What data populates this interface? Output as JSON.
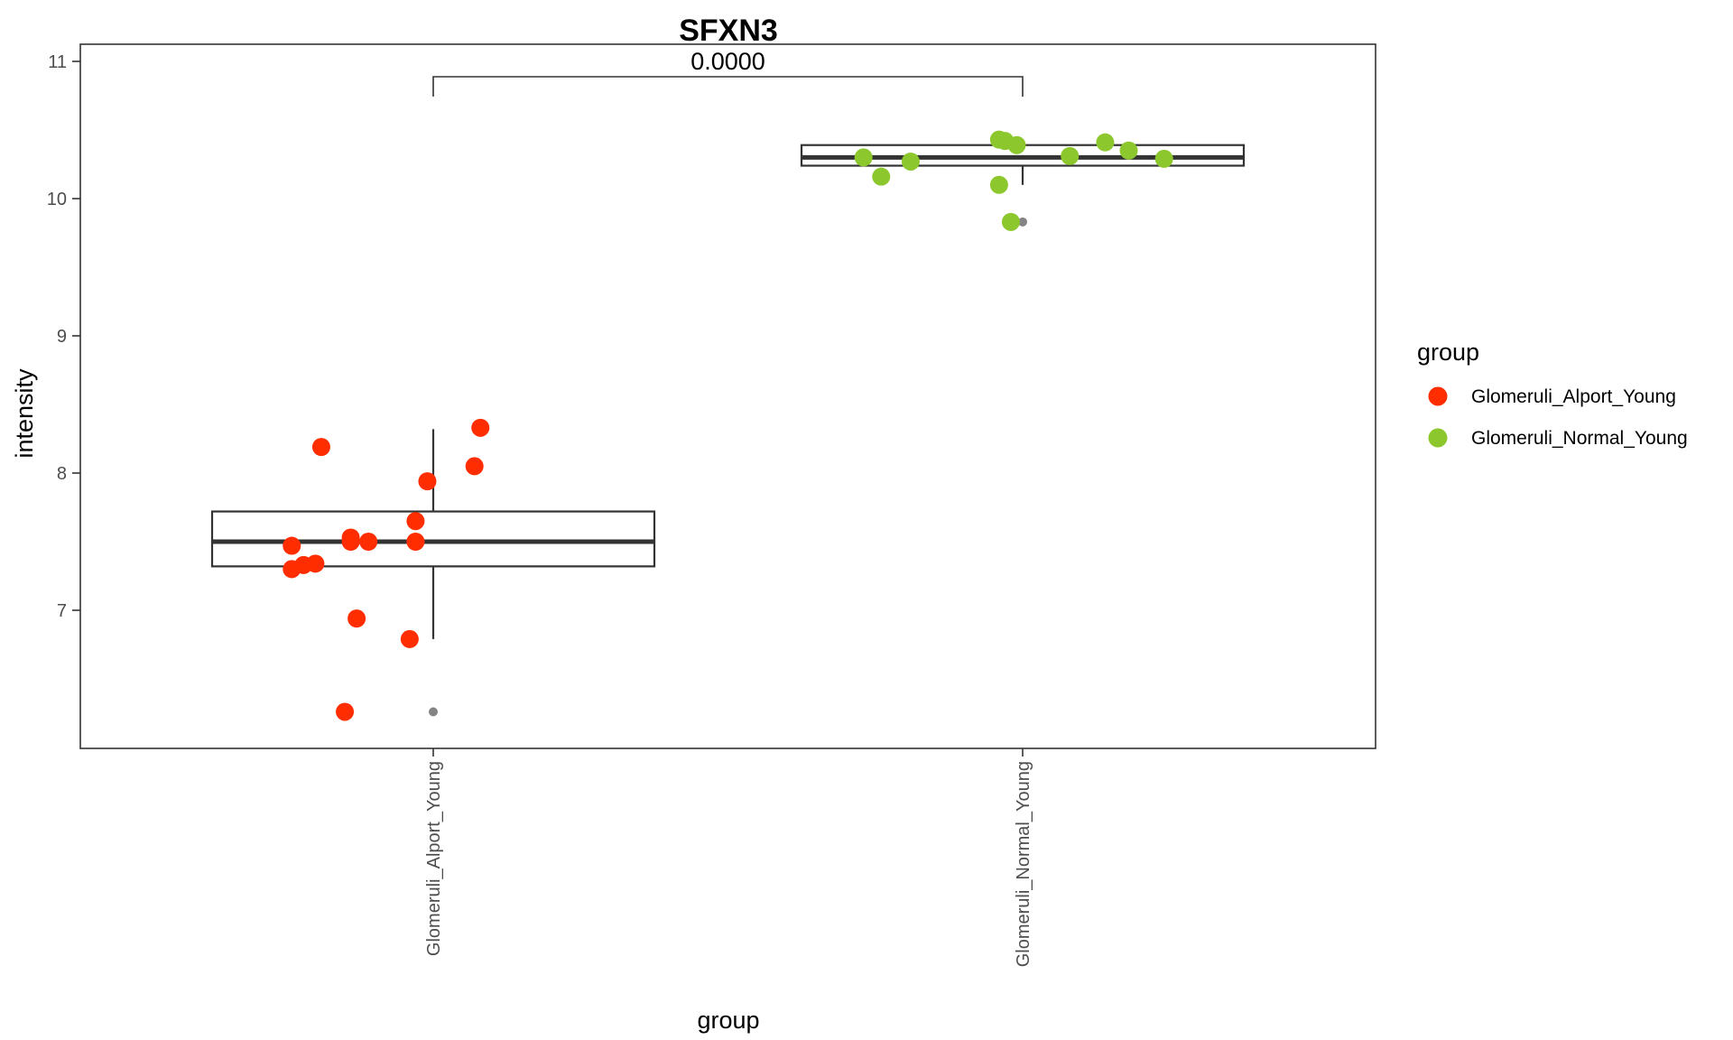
{
  "chart_data": {
    "type": "box",
    "title": "SFXN3",
    "xlabel": "group",
    "ylabel": "intensity",
    "categories": [
      "Glomeruli_Alport_Young",
      "Glomeruli_Normal_Young"
    ],
    "ylim": [
      6.0,
      11.15
    ],
    "yticks": [
      7,
      8,
      9,
      10,
      11
    ],
    "grid": false,
    "legend": {
      "title": "group",
      "placement": "right",
      "entries": [
        {
          "label": "Glomeruli_Alport_Young",
          "color": "#FF2D00"
        },
        {
          "label": "Glomeruli_Normal_Young",
          "color": "#8CC82D"
        }
      ]
    },
    "comparison": {
      "label": "0.0000",
      "between": [
        "Glomeruli_Alport_Young",
        "Glomeruli_Normal_Young"
      ]
    },
    "boxes": [
      {
        "category": "Glomeruli_Alport_Young",
        "whisker_low": 6.79,
        "q1": 7.32,
        "median": 7.5,
        "q3": 7.72,
        "whisker_high": 8.32,
        "outliers": [
          6.26
        ]
      },
      {
        "category": "Glomeruli_Normal_Young",
        "whisker_low": 10.1,
        "q1": 10.24,
        "median": 10.3,
        "q3": 10.39,
        "whisker_high": 10.43,
        "outliers": [
          9.83
        ]
      }
    ],
    "series": [
      {
        "name": "Glomeruli_Alport_Young",
        "color": "#FF2D00",
        "points": [
          {
            "x": 0.81,
            "y": 8.19
          },
          {
            "x": 1.08,
            "y": 8.33
          },
          {
            "x": 1.07,
            "y": 8.05
          },
          {
            "x": 0.99,
            "y": 7.94
          },
          {
            "x": 0.97,
            "y": 7.65
          },
          {
            "x": 0.86,
            "y": 7.53
          },
          {
            "x": 0.86,
            "y": 7.5
          },
          {
            "x": 0.89,
            "y": 7.5
          },
          {
            "x": 0.97,
            "y": 7.5
          },
          {
            "x": 0.76,
            "y": 7.47
          },
          {
            "x": 0.8,
            "y": 7.34
          },
          {
            "x": 0.78,
            "y": 7.33
          },
          {
            "x": 0.76,
            "y": 7.3
          },
          {
            "x": 0.87,
            "y": 6.94
          },
          {
            "x": 0.96,
            "y": 6.79
          },
          {
            "x": 0.85,
            "y": 6.26
          }
        ]
      },
      {
        "name": "Glomeruli_Normal_Young",
        "color": "#8CC82D",
        "points": [
          {
            "x": 1.96,
            "y": 10.43
          },
          {
            "x": 1.97,
            "y": 10.42
          },
          {
            "x": 1.99,
            "y": 10.39
          },
          {
            "x": 2.14,
            "y": 10.41
          },
          {
            "x": 2.18,
            "y": 10.35
          },
          {
            "x": 2.08,
            "y": 10.31
          },
          {
            "x": 1.73,
            "y": 10.3
          },
          {
            "x": 2.24,
            "y": 10.29
          },
          {
            "x": 1.81,
            "y": 10.27
          },
          {
            "x": 1.76,
            "y": 10.16
          },
          {
            "x": 1.96,
            "y": 10.1
          },
          {
            "x": 1.98,
            "y": 9.83
          }
        ]
      }
    ]
  }
}
